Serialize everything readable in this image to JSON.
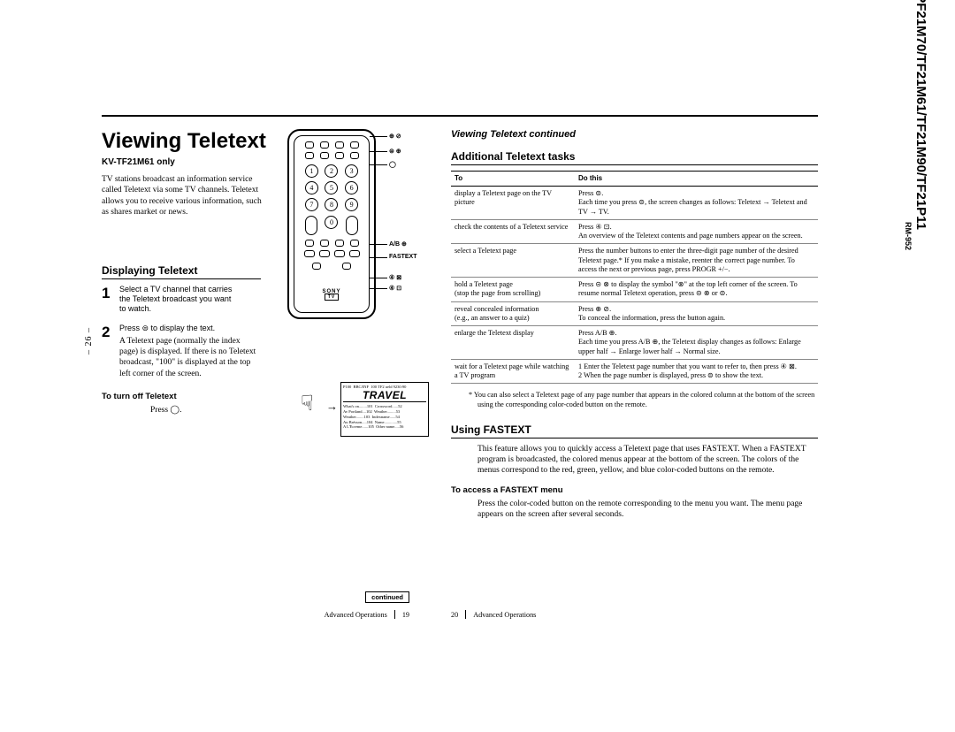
{
  "side": {
    "page_spread": "– 26 –",
    "model_header": "KV-PF21M70/TF21M61/TF21M90/TF21P11",
    "remote_model": "RM-952"
  },
  "left": {
    "title": "Viewing Teletext",
    "model_only": "KV-TF21M61 only",
    "intro": "TV stations broadcast an information service called Teletext via some TV channels. Teletext allows you to receive various information, such as shares market or news.",
    "displaying_h": "Displaying Teletext",
    "step1_head": "Select a TV channel that carries the Teletext broadcast you want to watch.",
    "step2_head": "Press ⊜ to display the text.",
    "step2_body": "A Teletext page (normally the index page) is displayed. If there is no Teletext broadcast, \"100\" is displayed at the top left corner of the screen.",
    "turnoff_h": "To turn off Teletext",
    "turnoff_body": "Press ◯.",
    "remote_labels": {
      "l1": "⊕ ⊘",
      "l2": "⊜ ⊕",
      "l3": "◯",
      "l4": "A/B ⊕",
      "l5": "FASTEXT",
      "l6": "④ ⊠",
      "l7": "④ ⊡"
    },
    "continued": "continued",
    "footer_section": "Advanced Operations",
    "footer_page": "19",
    "travel": "TRAVEL"
  },
  "right": {
    "cont_h": "Viewing Teletext continued",
    "tasks_h": "Additional Teletext tasks",
    "th_to": "To",
    "th_do": "Do this",
    "rows": [
      {
        "to": "display a Teletext page on the TV picture",
        "do": "Press ⊜.\nEach time you press ⊜, the screen changes as follows: Teletext → Teletext and TV → TV."
      },
      {
        "to": "check the contents of a Teletext service",
        "do": "Press ④ ⊡.\nAn overview of the Teletext contents and page numbers appear on the screen."
      },
      {
        "to": "select a Teletext page",
        "do": "Press the number buttons to enter the three-digit page number of the desired Teletext page.* If you make a mistake, reenter the correct page number. To access the next or previous page, press PROGR +/−."
      },
      {
        "to": "hold a Teletext page\n(stop the page from scrolling)",
        "do": "Press ⊝ ⊗ to display the symbol \"⊗\" at the top left corner of the screen. To resume normal Teletext operation, press ⊝ ⊗ or ⊜."
      },
      {
        "to": "reveal concealed information\n(e.g., an answer to a quiz)",
        "do": "Press ⊕ ⊘.\nTo conceal the information, press the button again."
      },
      {
        "to": "enlarge the Teletext display",
        "do": "Press A/B ⊕.\nEach time you press A/B ⊕, the Teletext display changes as follows: Enlarge upper half → Enlarge lower half → Normal size."
      },
      {
        "to": "wait for a Teletext page while watching a TV program",
        "do": "1  Enter the Teletext page number that you want to refer to, then press ④ ⊠.\n2  When the page number is displayed, press ⊜ to show the text."
      }
    ],
    "note": "*  You can also select a Teletext page of any page number that appears in the colored column at the bottom of the screen using the corresponding color-coded button on the remote.",
    "fastext_h": "Using FASTEXT",
    "fastext_body": "This feature allows you to quickly access a Teletext page that uses FASTEXT. When a FASTEXT program is broadcasted, the colored menus appear at the bottom of the screen. The colors of the menus correspond to the red, green, yellow, and blue color-coded buttons on the remote.",
    "access_h": "To access a FASTEXT menu",
    "access_body": "Press the color-coded button on the remote corresponding to the menu you want. The menu page appears on the screen after several seconds.",
    "footer_section": "Advanced Operations",
    "footer_page": "20"
  }
}
